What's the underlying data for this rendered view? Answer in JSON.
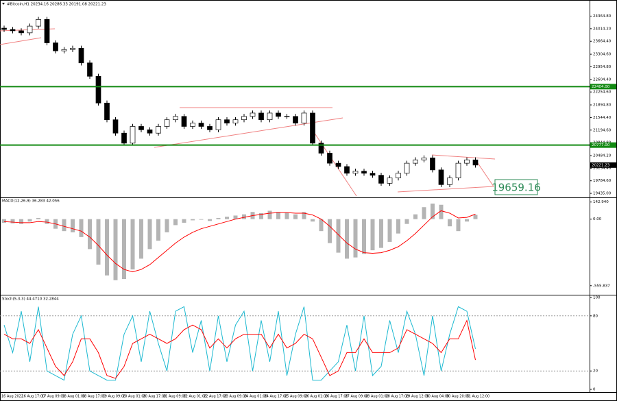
{
  "chart_data": [
    {
      "type": "candlestick",
      "title": "#Bitcoin,H1 20234.16 20286.33 20191.08 20221.23",
      "open": [
        24030,
        23993,
        23956,
        23900,
        24086,
        24272,
        23621,
        23398,
        23435,
        23472,
        23063,
        22691,
        21947,
        21482,
        21110,
        20831,
        21296,
        21203,
        21110,
        21296,
        21482,
        21575,
        21296,
        21389,
        21296,
        21203,
        21482,
        21389,
        21482,
        21575,
        21668,
        21482,
        21668,
        21575,
        21575,
        21389,
        21668,
        20831,
        20552,
        20273,
        20180,
        19994,
        20050,
        19994,
        19938,
        19715,
        19864,
        19994,
        20273,
        20366,
        20422,
        20087,
        19678,
        19864,
        20273,
        20366
      ],
      "high": [
        24100,
        24063,
        24026,
        24156,
        24342,
        24342,
        23691,
        23505,
        23542,
        23542,
        23133,
        22761,
        22017,
        21552,
        21180,
        21366,
        21366,
        21273,
        21366,
        21552,
        21645,
        21645,
        21459,
        21459,
        21366,
        21552,
        21552,
        21552,
        21645,
        21738,
        21738,
        21738,
        21738,
        21645,
        21645,
        21738,
        21738,
        20901,
        20622,
        20343,
        20250,
        20120,
        20120,
        20064,
        20008,
        19934,
        20064,
        20343,
        20436,
        20492,
        20492,
        20157,
        19934,
        20343,
        20436,
        20436
      ],
      "low": [
        23923,
        23886,
        23830,
        23830,
        24016,
        23551,
        23328,
        23328,
        23365,
        22993,
        22621,
        21877,
        21412,
        21040,
        20761,
        20761,
        21133,
        21040,
        21040,
        21226,
        21412,
        21226,
        21226,
        21226,
        21133,
        21133,
        21319,
        21319,
        21412,
        21505,
        21412,
        21412,
        21505,
        21505,
        21319,
        21319,
        20761,
        20482,
        20203,
        20110,
        19924,
        19924,
        19924,
        19868,
        19645,
        19645,
        19794,
        19924,
        20203,
        20296,
        20017,
        19608,
        19608,
        19794,
        20203,
        20151
      ],
      "close": [
        23993,
        23956,
        23900,
        24086,
        24272,
        23621,
        23398,
        23435,
        23472,
        23063,
        22691,
        21947,
        21482,
        21110,
        20831,
        21296,
        21203,
        21110,
        21296,
        21482,
        21575,
        21296,
        21389,
        21296,
        21203,
        21482,
        21389,
        21482,
        21575,
        21668,
        21482,
        21668,
        21575,
        21575,
        21389,
        21668,
        20831,
        20552,
        20273,
        20180,
        19994,
        20050,
        19994,
        19938,
        19715,
        19864,
        19994,
        20273,
        20366,
        20422,
        20087,
        19678,
        19864,
        20273,
        20366,
        20221
      ],
      "up_color": "#ffffff",
      "down_color": "#000000",
      "ylim": [
        19360,
        24660
      ],
      "yticks": [
        {
          "value": 24364.8,
          "label": "24364.80"
        },
        {
          "value": 24014.2,
          "label": "24014.20"
        },
        {
          "value": 23664.4,
          "label": "23664.40"
        },
        {
          "value": 23304.6,
          "label": "23304.60"
        },
        {
          "value": 22954.8,
          "label": "22954.80"
        },
        {
          "value": 22604.4,
          "label": "22604.40"
        },
        {
          "value": 22254.6,
          "label": "22254.60"
        },
        {
          "value": 21894.8,
          "label": "21894.80"
        },
        {
          "value": 21544.4,
          "label": "21544.40"
        },
        {
          "value": 21194.6,
          "label": "21194.60"
        },
        {
          "value": 20844.8,
          "label": "20844.80"
        },
        {
          "value": 20484.2,
          "label": "20484.20"
        },
        {
          "value": 20134.4,
          "label": "20134.40"
        },
        {
          "value": 19784.6,
          "label": "19784.60"
        },
        {
          "value": 19435,
          "label": "19435.00"
        }
      ],
      "levels": [
        {
          "value": 22404,
          "label": "22404.00",
          "color": "#138a13"
        },
        {
          "value": 20777,
          "label": "20777.00",
          "color": "#138a13"
        }
      ],
      "last_price": 20221.23,
      "annotation": "19659.16",
      "x_labels": [
        "16 Aug 2022",
        "16 Aug 17:00",
        "17 Aug 09:00",
        "18 Aug 01:00",
        "18 Aug 17:00",
        "19 Aug 09:00",
        "20 Aug 01:00",
        "20 Aug 17:00",
        "21 Aug 09:00",
        "22 Aug 01:00",
        "22 Aug 17:00",
        "23 Aug 09:00",
        "24 Aug 01:00",
        "24 Aug 17:00",
        "25 Aug 09:00",
        "26 Aug 01:00",
        "26 Aug 17:00",
        "27 Aug 09:00",
        "28 Aug 01:00",
        "28 Aug 17:00",
        "29 Aug 12:00",
        "30 Aug 04:00",
        "30 Aug 20:00",
        "31 Aug 12:00"
      ]
    },
    {
      "type": "macd",
      "title": "MACD(12,26,9) 36.283 42.056",
      "series": [
        {
          "style": "histogram",
          "color": "#b4b4b4",
          "values": [
            -30,
            -35,
            -40,
            -20,
            10,
            -40,
            -80,
            -100,
            -110,
            -150,
            -250,
            -380,
            -470,
            -510,
            -500,
            -420,
            -330,
            -250,
            -180,
            -110,
            -50,
            -30,
            -10,
            -5,
            -15,
            10,
            20,
            30,
            40,
            60,
            50,
            70,
            60,
            55,
            40,
            60,
            -20,
            -100,
            -200,
            -280,
            -330,
            -320,
            -290,
            -260,
            -240,
            -190,
            -120,
            -40,
            40,
            100,
            130,
            120,
            -60,
            -100,
            -20,
            36
          ]
        },
        {
          "style": "line",
          "color": "#ff0000",
          "values": [
            -20,
            -25,
            -30,
            -30,
            -20,
            -25,
            -40,
            -60,
            -80,
            -100,
            -150,
            -220,
            -300,
            -370,
            -420,
            -440,
            -420,
            -380,
            -320,
            -260,
            -200,
            -150,
            -110,
            -80,
            -60,
            -40,
            -20,
            0,
            15,
            30,
            40,
            50,
            55,
            55,
            50,
            50,
            35,
            0,
            -60,
            -130,
            -200,
            -250,
            -280,
            -285,
            -280,
            -260,
            -230,
            -180,
            -120,
            -50,
            20,
            70,
            50,
            10,
            15,
            42
          ]
        }
      ],
      "ylim": [
        -620,
        170
      ],
      "yticks": [
        {
          "value": 142.94,
          "label": "142.940"
        },
        {
          "value": 0,
          "label": "0.00"
        },
        {
          "value": -555.837,
          "label": "-555.837"
        }
      ]
    },
    {
      "type": "stochastic",
      "title": "Stoch(5,3,3) 44.4710 32.2844",
      "series": [
        {
          "style": "line",
          "color": "#1ab8d0",
          "values": [
            70,
            40,
            85,
            30,
            90,
            20,
            15,
            10,
            60,
            80,
            20,
            15,
            10,
            10,
            60,
            80,
            30,
            85,
            50,
            20,
            85,
            90,
            40,
            75,
            20,
            80,
            30,
            70,
            85,
            20,
            75,
            30,
            85,
            15,
            60,
            90,
            10,
            10,
            20,
            30,
            70,
            20,
            80,
            15,
            25,
            75,
            40,
            85,
            60,
            15,
            80,
            20,
            60,
            90,
            85,
            44
          ]
        },
        {
          "style": "line",
          "color": "#ff0000",
          "values": [
            60,
            55,
            55,
            50,
            65,
            45,
            25,
            15,
            30,
            55,
            55,
            40,
            15,
            12,
            25,
            50,
            55,
            60,
            55,
            50,
            55,
            65,
            70,
            65,
            45,
            55,
            45,
            55,
            60,
            60,
            60,
            45,
            60,
            45,
            50,
            60,
            55,
            35,
            15,
            20,
            40,
            40,
            55,
            40,
            40,
            40,
            45,
            65,
            60,
            55,
            50,
            40,
            55,
            55,
            75,
            32
          ]
        }
      ],
      "ylim": [
        0,
        100
      ],
      "yticks": [
        100,
        80,
        20,
        0
      ],
      "grid": true
    }
  ]
}
